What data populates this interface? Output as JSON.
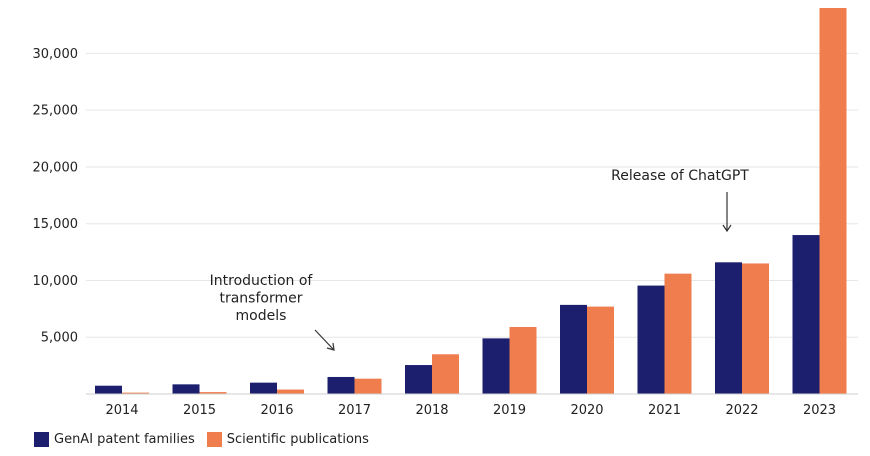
{
  "chart_data": {
    "type": "bar",
    "title": "",
    "xlabel": "",
    "ylabel": "",
    "categories": [
      "2014",
      "2015",
      "2016",
      "2017",
      "2018",
      "2019",
      "2020",
      "2021",
      "2022",
      "2023"
    ],
    "series": [
      {
        "name": "GenAI patent families",
        "color": "#1b1f6e",
        "values": [
          730,
          850,
          1000,
          1500,
          2550,
          4900,
          7850,
          9550,
          11600,
          14000
        ]
      },
      {
        "name": "Scientific publications",
        "color": "#ef7d4d",
        "values": [
          120,
          170,
          390,
          1350,
          3500,
          5900,
          7700,
          10600,
          11500,
          34000
        ]
      }
    ],
    "ylim": [
      0,
      34000
    ],
    "yticks": [
      5000,
      10000,
      15000,
      20000,
      25000,
      30000
    ],
    "ytick_labels": [
      "5,000",
      "10,000",
      "15,000",
      "20,000",
      "25,000",
      "30,000"
    ],
    "grid": true,
    "legend_position": "bottom-left",
    "annotations": [
      {
        "label_lines": [
          "Introduction of",
          "transformer",
          "models"
        ],
        "category": "2017"
      },
      {
        "label_lines": [
          "Release of ChatGPT"
        ],
        "category": "2022"
      }
    ]
  }
}
